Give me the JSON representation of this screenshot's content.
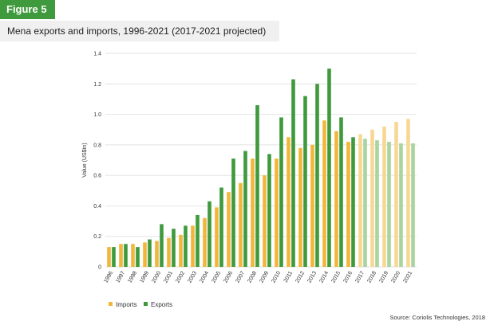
{
  "figure_label": "Figure 5",
  "title": "Mena exports and imports, 1996-2021 (2017-2021 projected)",
  "source": "Source: Coriolis Technologies, 2018",
  "colors": {
    "imports": "#f2b63a",
    "exports": "#3e9a3c",
    "imports_projected": "#f7d793",
    "exports_projected": "#a8d49d",
    "tag_bg": "#3e9a3c",
    "title_bg": "#f0f0f0",
    "grid": "#d9d9d9"
  },
  "chart_data": {
    "type": "bar",
    "title": "",
    "xlabel": "",
    "ylabel": "Value (US$tn)",
    "ylim": [
      0,
      1.4
    ],
    "yticks": [
      0,
      0.2,
      0.4,
      0.6,
      0.8,
      1.0,
      1.2,
      1.4
    ],
    "ytick_labels": [
      "0",
      "0.2",
      "0.4",
      "0.6",
      "0.8",
      "1.0",
      "1.2",
      "1.4"
    ],
    "grid": true,
    "legend_position": "bottom-left",
    "projected_from": "2017",
    "categories": [
      "1996",
      "1997",
      "1998",
      "1999",
      "2000",
      "2001",
      "2002",
      "2003",
      "2004",
      "2005",
      "2006",
      "2007",
      "2008",
      "2009",
      "2010",
      "2011",
      "2012",
      "2013",
      "2014",
      "2015",
      "2016",
      "2017",
      "2018",
      "2019",
      "2020",
      "2021"
    ],
    "series": [
      {
        "name": "Imports",
        "values": [
          0.13,
          0.15,
          0.15,
          0.16,
          0.17,
          0.19,
          0.21,
          0.27,
          0.32,
          0.39,
          0.49,
          0.55,
          0.71,
          0.6,
          0.71,
          0.85,
          0.78,
          0.8,
          0.96,
          0.89,
          0.82,
          0.87,
          0.9,
          0.92,
          0.95,
          0.97
        ]
      },
      {
        "name": "Exports",
        "values": [
          0.13,
          0.15,
          0.13,
          0.18,
          0.28,
          0.25,
          0.27,
          0.34,
          0.43,
          0.52,
          0.71,
          0.76,
          1.06,
          0.74,
          0.98,
          1.23,
          1.12,
          1.2,
          1.3,
          0.98,
          0.85,
          0.84,
          0.83,
          0.82,
          0.81,
          0.81
        ]
      }
    ]
  }
}
